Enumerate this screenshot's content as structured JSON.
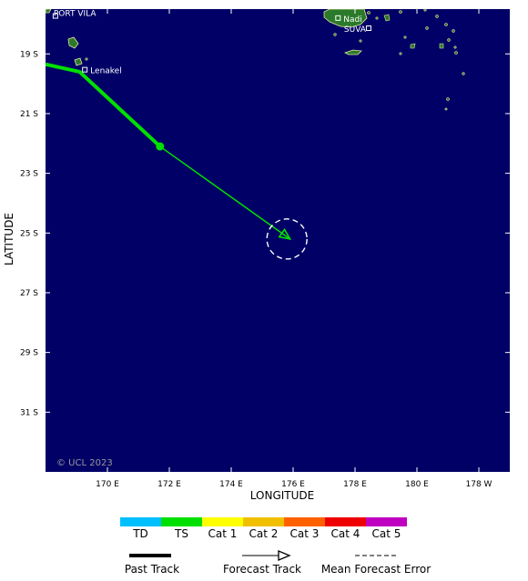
{
  "axes": {
    "xlabel": "LONGITUDE",
    "ylabel": "LATITUDE",
    "lon_ticks": [
      "170 E",
      "172 E",
      "174 E",
      "176 E",
      "178 E",
      "180 E",
      "178 W"
    ],
    "lat_ticks": [
      "19 S",
      "21 S",
      "23 S",
      "25 S",
      "27 S",
      "29 S",
      "31 S"
    ]
  },
  "places": [
    {
      "name": "PORT VILA",
      "lon": 168.32,
      "lat": -17.73
    },
    {
      "name": "Lenakel",
      "lon": 169.27,
      "lat": -19.53
    },
    {
      "name": "Nadi",
      "lon": 177.45,
      "lat": -17.8
    },
    {
      "name": "SUVA",
      "lon": 178.44,
      "lat": -18.14
    }
  ],
  "copyright": "© UCL 2023",
  "chart_data": {
    "type": "map",
    "past_track": [
      {
        "lon": 168.0,
        "lat": -19.35
      },
      {
        "lon": 169.1,
        "lat": -19.6
      },
      {
        "lon": 171.7,
        "lat": -22.1
      }
    ],
    "forecast_track": [
      {
        "lon": 171.7,
        "lat": -22.1
      },
      {
        "lon": 175.9,
        "lat": -25.2
      }
    ],
    "error_circle": {
      "lon": 175.8,
      "lat": -25.2
    },
    "intensity_color": "#00e000",
    "xlim": [
      168.0,
      183.0
    ],
    "ylim": [
      -33.0,
      -17.5
    ]
  },
  "legend": {
    "scale": [
      {
        "label": "TD",
        "color": "#00bfff"
      },
      {
        "label": "TS",
        "color": "#00e000"
      },
      {
        "label": "Cat 1",
        "color": "#ffff00"
      },
      {
        "label": "Cat 2",
        "color": "#f0c000"
      },
      {
        "label": "Cat 3",
        "color": "#ff6000"
      },
      {
        "label": "Cat 4",
        "color": "#ee0000"
      },
      {
        "label": "Cat 5",
        "color": "#c000c0"
      }
    ],
    "past_track": "Past Track",
    "forecast_track": "Forecast Track",
    "error": "Mean Forecast Error"
  },
  "colors": {
    "ocean": "#000066",
    "land": "#2b7a2b",
    "coast": "#e8e8a0"
  }
}
